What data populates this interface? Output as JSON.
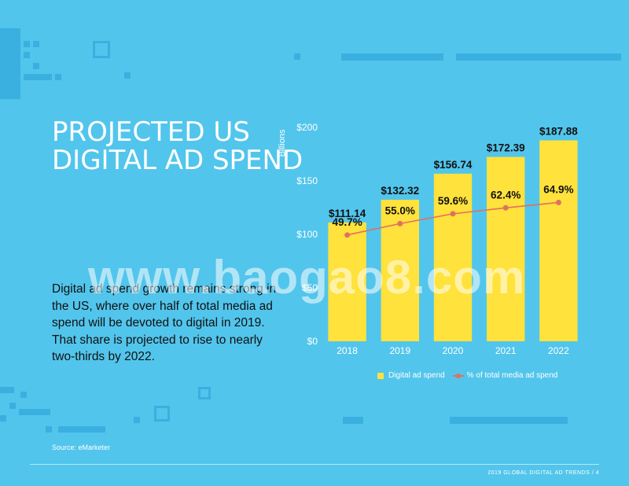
{
  "title_lines": [
    "PROJECTED US",
    "DIGITAL AD SPEND"
  ],
  "body_text": "Digital ad spend growth remains strong in the US, where over half of total media ad spend will be devoted to digital in 2019. That share is projected to rise to nearly two-thirds by 2022.",
  "source": "Source: eMarketer",
  "footer": "2019 GLOBAL DIGITAL AD TRENDS  /   4",
  "watermark": "www.baogao8.com",
  "legend": {
    "bar_label": "Digital ad spend",
    "line_label": "% of total media ad spend"
  },
  "colors": {
    "background": "#52c5ec",
    "bar": "#ffe23b",
    "line": "#e07060"
  },
  "chart_data": {
    "type": "bar",
    "categories": [
      "2018",
      "2019",
      "2020",
      "2021",
      "2022"
    ],
    "series": [
      {
        "name": "Digital ad spend",
        "type": "bar",
        "values": [
          111.14,
          132.32,
          156.74,
          172.39,
          187.88
        ],
        "labels": [
          "$111.14",
          "$132.32",
          "$156.74",
          "$172.39",
          "$187.88"
        ]
      },
      {
        "name": "% of total media ad spend",
        "type": "line",
        "values": [
          49.7,
          55.0,
          59.6,
          62.4,
          64.9
        ],
        "labels": [
          "49.7%",
          "55.0%",
          "59.6%",
          "62.4%",
          "64.9%"
        ]
      }
    ],
    "ylabel": "Billions",
    "ylim": [
      0,
      200
    ],
    "yticks": [
      0,
      50,
      100,
      150,
      200
    ],
    "ytick_labels": [
      "$0",
      "$50",
      "$100",
      "$150",
      "$200"
    ],
    "y2lim": [
      0,
      100
    ],
    "legend_position": "bottom",
    "grid": false
  }
}
